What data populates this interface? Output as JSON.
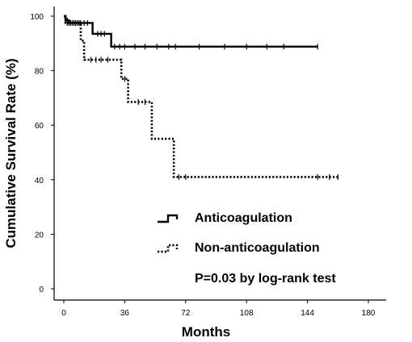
{
  "chart_data": {
    "type": "line",
    "subtype": "kaplan-meier",
    "title": "",
    "xlabel": "Months",
    "ylabel": "Cumulative Survival Rate (%)",
    "xlim": [
      0,
      180
    ],
    "ylim": [
      0,
      100
    ],
    "xticks": [
      0,
      36,
      72,
      108,
      144,
      180
    ],
    "yticks": [
      0,
      20,
      40,
      60,
      80,
      100
    ],
    "grid": false,
    "legend_position": "lower-right inside plot",
    "annotation": "P=0.03 by log-rank test",
    "series": [
      {
        "name": "Anticoagulation",
        "line_style": "solid",
        "color": "#000000",
        "steps": [
          [
            0,
            100
          ],
          [
            1,
            98.5
          ],
          [
            3,
            97.5
          ],
          [
            17,
            93.5
          ],
          [
            28,
            88.8
          ],
          [
            150,
            88.8
          ]
        ],
        "censored": [
          [
            1,
            98.5
          ],
          [
            2,
            98.5
          ],
          [
            4,
            97.5
          ],
          [
            5,
            97.5
          ],
          [
            6,
            97.5
          ],
          [
            7,
            97.5
          ],
          [
            8,
            97.5
          ],
          [
            10,
            97.5
          ],
          [
            12,
            97.5
          ],
          [
            14,
            97.5
          ],
          [
            20,
            93.5
          ],
          [
            22,
            93.5
          ],
          [
            24,
            93.5
          ],
          [
            30,
            88.8
          ],
          [
            33,
            88.8
          ],
          [
            36,
            88.8
          ],
          [
            42,
            88.8
          ],
          [
            48,
            88.8
          ],
          [
            55,
            88.8
          ],
          [
            62,
            88.8
          ],
          [
            66,
            88.8
          ],
          [
            80,
            88.8
          ],
          [
            95,
            88.8
          ],
          [
            108,
            88.8
          ],
          [
            120,
            88.8
          ],
          [
            130,
            88.8
          ],
          [
            150,
            88.8
          ]
        ]
      },
      {
        "name": "Non-anticoagulation",
        "line_style": "dotted",
        "color": "#000000",
        "steps": [
          [
            0,
            100
          ],
          [
            1,
            97.5
          ],
          [
            10,
            91
          ],
          [
            12,
            84
          ],
          [
            34,
            77
          ],
          [
            38,
            68.5
          ],
          [
            52,
            55
          ],
          [
            65,
            41
          ],
          [
            162,
            41
          ]
        ],
        "censored": [
          [
            2,
            97.5
          ],
          [
            3,
            97.5
          ],
          [
            4,
            97.5
          ],
          [
            6,
            97.5
          ],
          [
            9,
            97.5
          ],
          [
            16,
            84
          ],
          [
            19,
            84
          ],
          [
            22,
            84
          ],
          [
            26,
            84
          ],
          [
            36,
            77
          ],
          [
            44,
            68.5
          ],
          [
            48,
            68.5
          ],
          [
            68,
            41
          ],
          [
            72,
            41
          ],
          [
            150,
            41
          ],
          [
            157,
            41
          ],
          [
            162,
            41
          ]
        ]
      }
    ]
  }
}
